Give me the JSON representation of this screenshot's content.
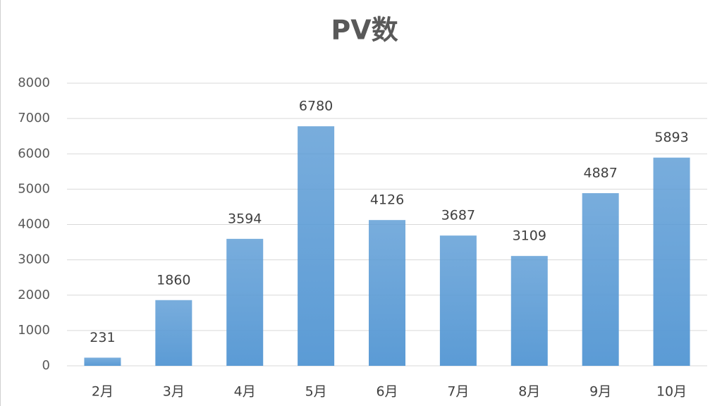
{
  "chart_data": {
    "type": "bar",
    "title": "PV数",
    "categories": [
      "2月",
      "3月",
      "4月",
      "5月",
      "6月",
      "7月",
      "8月",
      "9月",
      "10月"
    ],
    "values": [
      231,
      1860,
      3594,
      6780,
      4126,
      3687,
      3109,
      4887,
      5893
    ],
    "color": "#5b9bd5",
    "ylim": [
      0,
      8000
    ],
    "yticks": [
      0,
      1000,
      2000,
      3000,
      4000,
      5000,
      6000,
      7000,
      8000
    ],
    "grid": true
  }
}
